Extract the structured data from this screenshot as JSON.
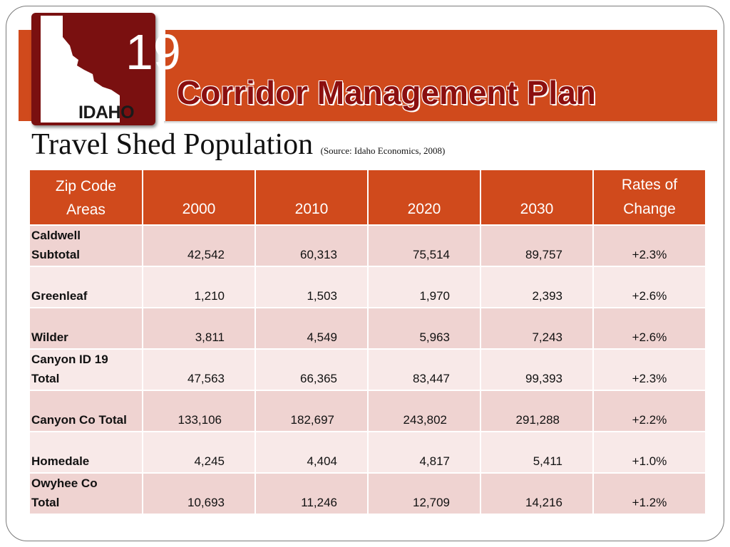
{
  "header": {
    "logo": {
      "number": "19",
      "label": "IDAHO"
    },
    "title": "Corridor Management Plan"
  },
  "slide": {
    "subtitle": "Travel Shed Population",
    "source": "(Source:  Idaho Economics, 2008)"
  },
  "colors": {
    "banner": "#d04a1c",
    "title": "#8b0f0f",
    "logo_bg": "#7a1010",
    "row_dark": "#efd3d1",
    "row_light": "#f8e9e8"
  },
  "table": {
    "headers": [
      [
        "Zip Code",
        "Areas"
      ],
      [
        "2000"
      ],
      [
        "2010"
      ],
      [
        "2020"
      ],
      [
        "2030"
      ],
      [
        "Rates of",
        "Change"
      ]
    ],
    "rows": [
      {
        "name": [
          "Caldwell",
          "Subtotal"
        ],
        "values": [
          "42,542",
          "60,313",
          "75,514",
          "89,757"
        ],
        "rate": "+2.3%"
      },
      {
        "name": [
          "",
          "Greenleaf"
        ],
        "values": [
          "1,210",
          "1,503",
          "1,970",
          "2,393"
        ],
        "rate": "+2.6%"
      },
      {
        "name": [
          "",
          "Wilder"
        ],
        "values": [
          "3,811",
          "4,549",
          "5,963",
          "7,243"
        ],
        "rate": "+2.6%"
      },
      {
        "name": [
          "Canyon ID 19",
          "Total"
        ],
        "values": [
          "47,563",
          "66,365",
          "83,447",
          "99,393"
        ],
        "rate": "+2.3%"
      },
      {
        "name": [
          "",
          "Canyon Co Total"
        ],
        "values": [
          "133,106",
          "182,697",
          "243,802",
          "291,288"
        ],
        "rate": "+2.2%"
      },
      {
        "name": [
          "",
          "Homedale"
        ],
        "values": [
          "4,245",
          "4,404",
          "4,817",
          "5,411"
        ],
        "rate": "+1.0%"
      },
      {
        "name": [
          "Owyhee Co",
          "Total"
        ],
        "values": [
          "10,693",
          "11,246",
          "12,709",
          "14,216"
        ],
        "rate": "+1.2%"
      }
    ]
  }
}
